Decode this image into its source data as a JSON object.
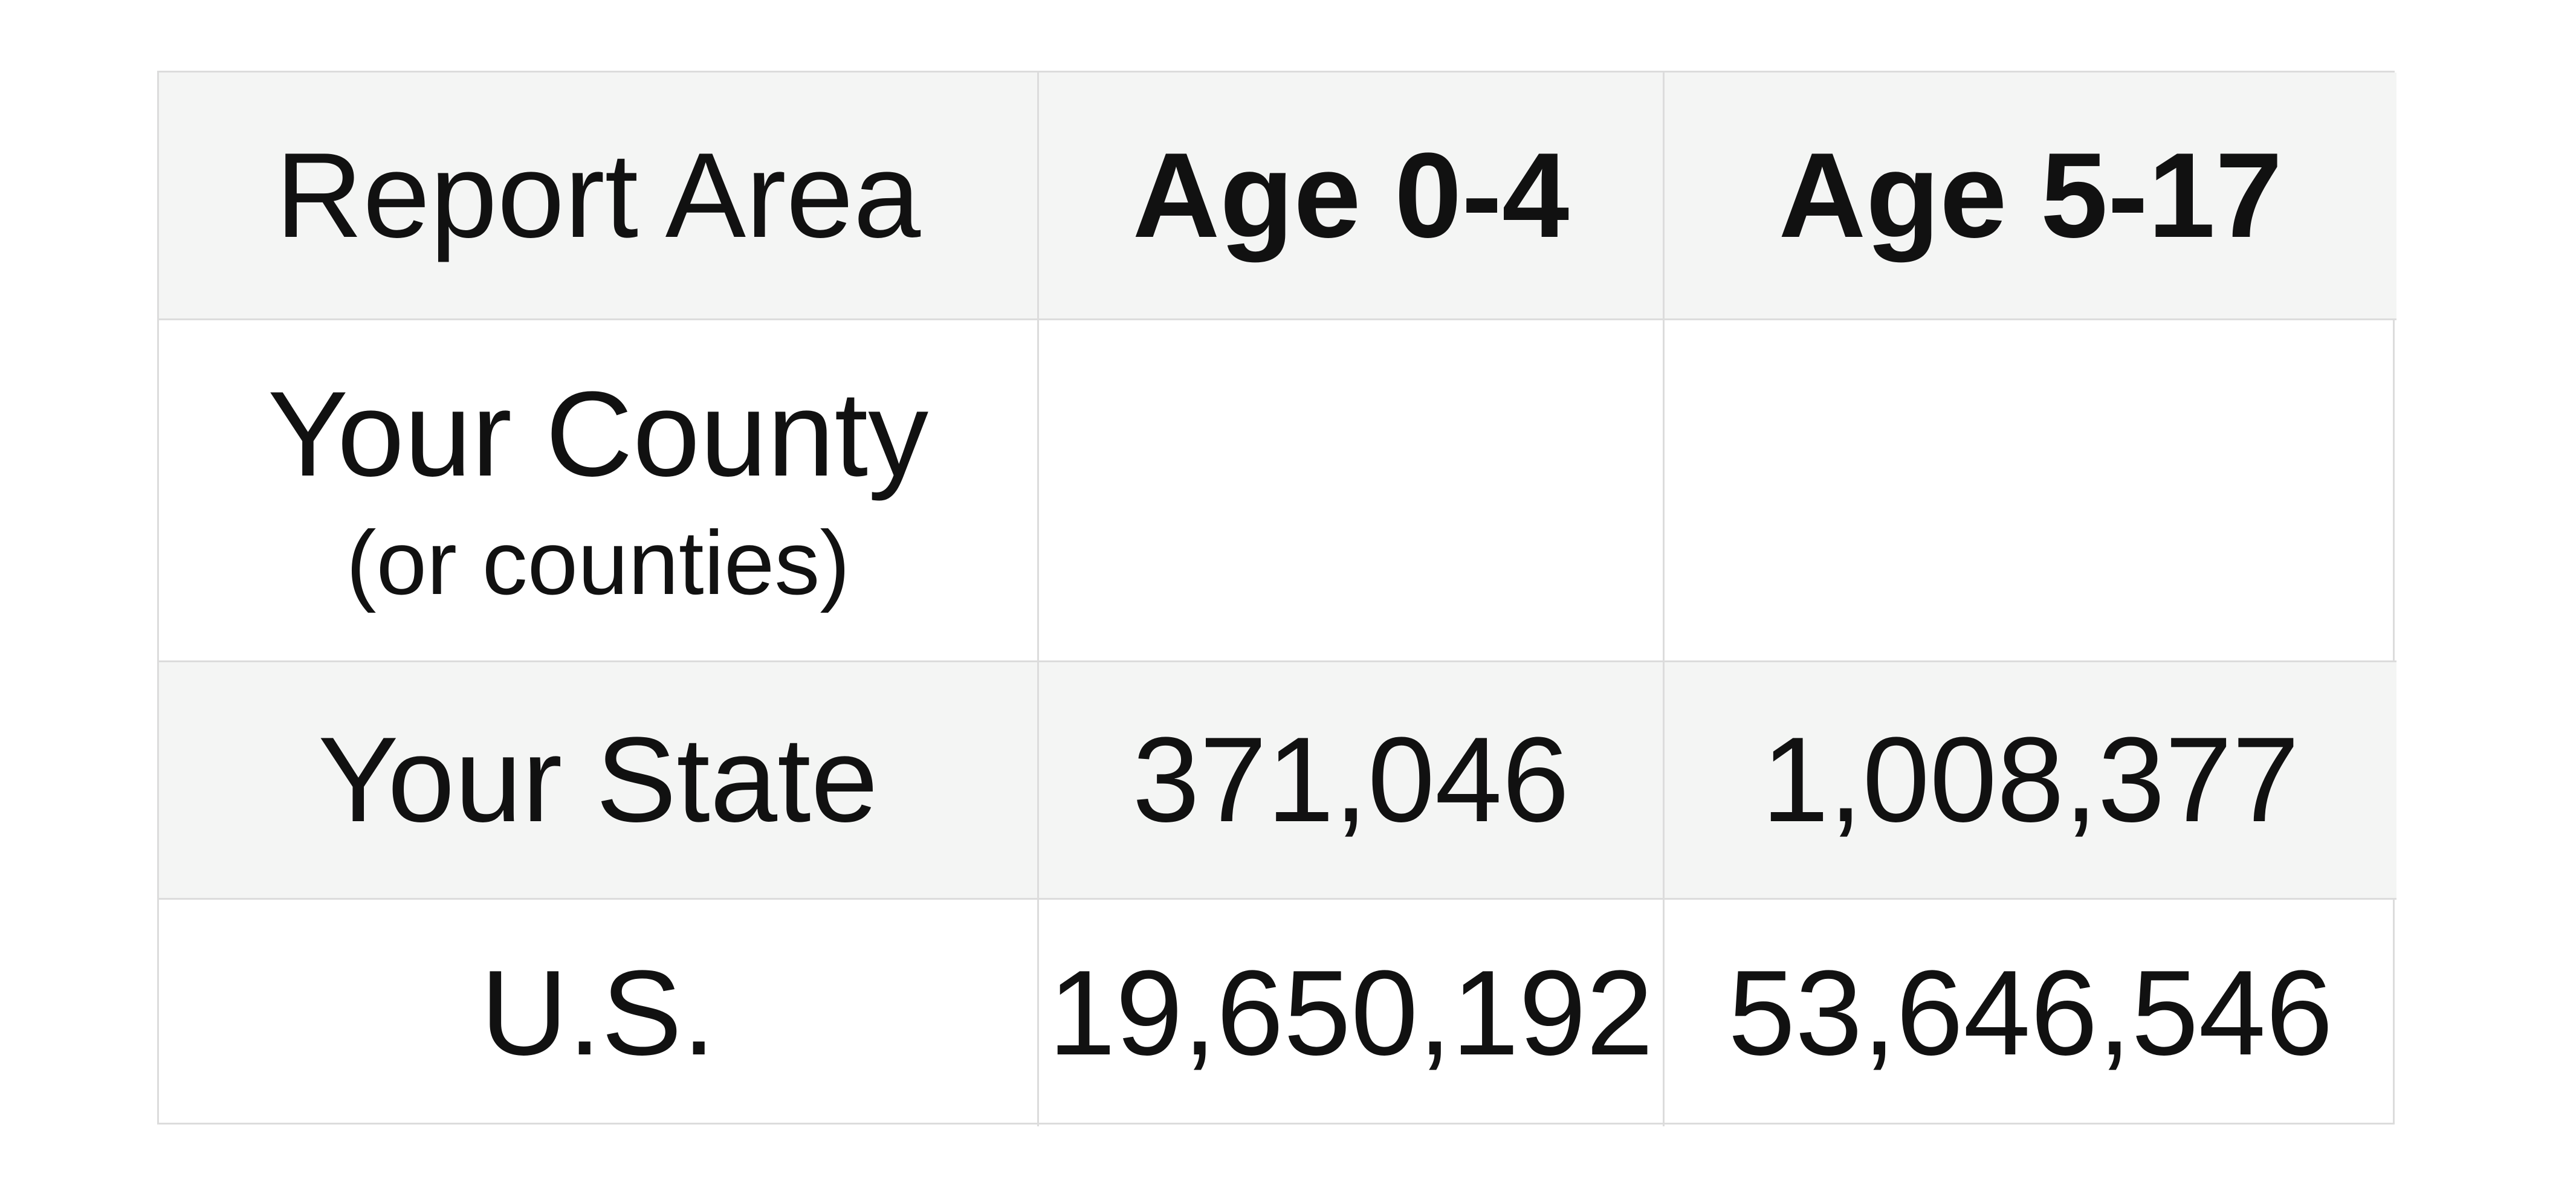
{
  "table": {
    "header": [
      "Report Area",
      "Age 0-4",
      "Age 5-17"
    ],
    "rows": [
      {
        "area": "Your County",
        "note": "(or counties)",
        "cells": [
          null,
          null
        ]
      },
      {
        "area": "Your State",
        "cells": [
          "371,046",
          "1,008,377"
        ]
      },
      {
        "area": "U.S.",
        "cells": [
          "19,650,192",
          "53,646,546"
        ]
      }
    ]
  }
}
